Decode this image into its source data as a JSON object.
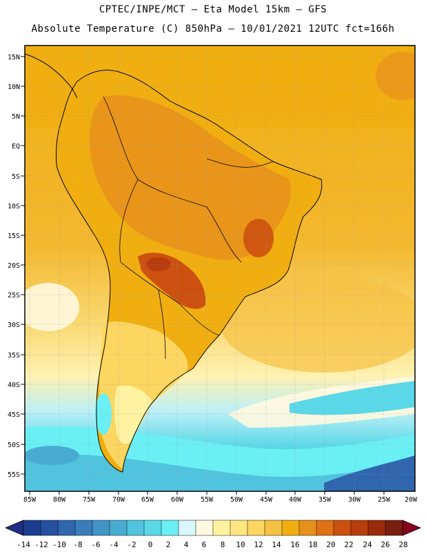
{
  "header": {
    "line1": "CPTEC/INPE/MCT –  Eta Model 15km – GFS",
    "line2": "Absolute Temperature (C) 850hPa – 10/01/2021 12UTC fct=166h"
  },
  "map": {
    "lat_labels": [
      "15N",
      "10N",
      "5N",
      "EQ",
      "5S",
      "10S",
      "15S",
      "20S",
      "25S",
      "30S",
      "35S",
      "40S",
      "45S",
      "50S",
      "55S"
    ],
    "lon_labels": [
      "85W",
      "80W",
      "75W",
      "70W",
      "65W",
      "60W",
      "55W",
      "50W",
      "45W",
      "40W",
      "35W",
      "30W",
      "25W",
      "20W"
    ]
  },
  "colorbar": {
    "tick_labels": [
      "-14",
      "-12",
      "-10",
      "-8",
      "-6",
      "-4",
      "-2",
      "0",
      "2",
      "4",
      "6",
      "8",
      "10",
      "12",
      "14",
      "16",
      "18",
      "20",
      "22",
      "24",
      "26",
      "28"
    ],
    "colors": [
      "#1b3d8f",
      "#27509f",
      "#2f66ad",
      "#3a7dbb",
      "#4294c6",
      "#48acd2",
      "#50c4de",
      "#5ad8e8",
      "#6af0f4",
      "#d8f6fb",
      "#fff8e0",
      "#fff2a0",
      "#ffe680",
      "#fcd660",
      "#f6c244",
      "#f0ae10",
      "#e8901c",
      "#e07014",
      "#cc5010",
      "#b83c0c",
      "#9a2a0a",
      "#7a1e10"
    ],
    "under_color": "#1e2e82",
    "over_color": "#880020"
  }
}
